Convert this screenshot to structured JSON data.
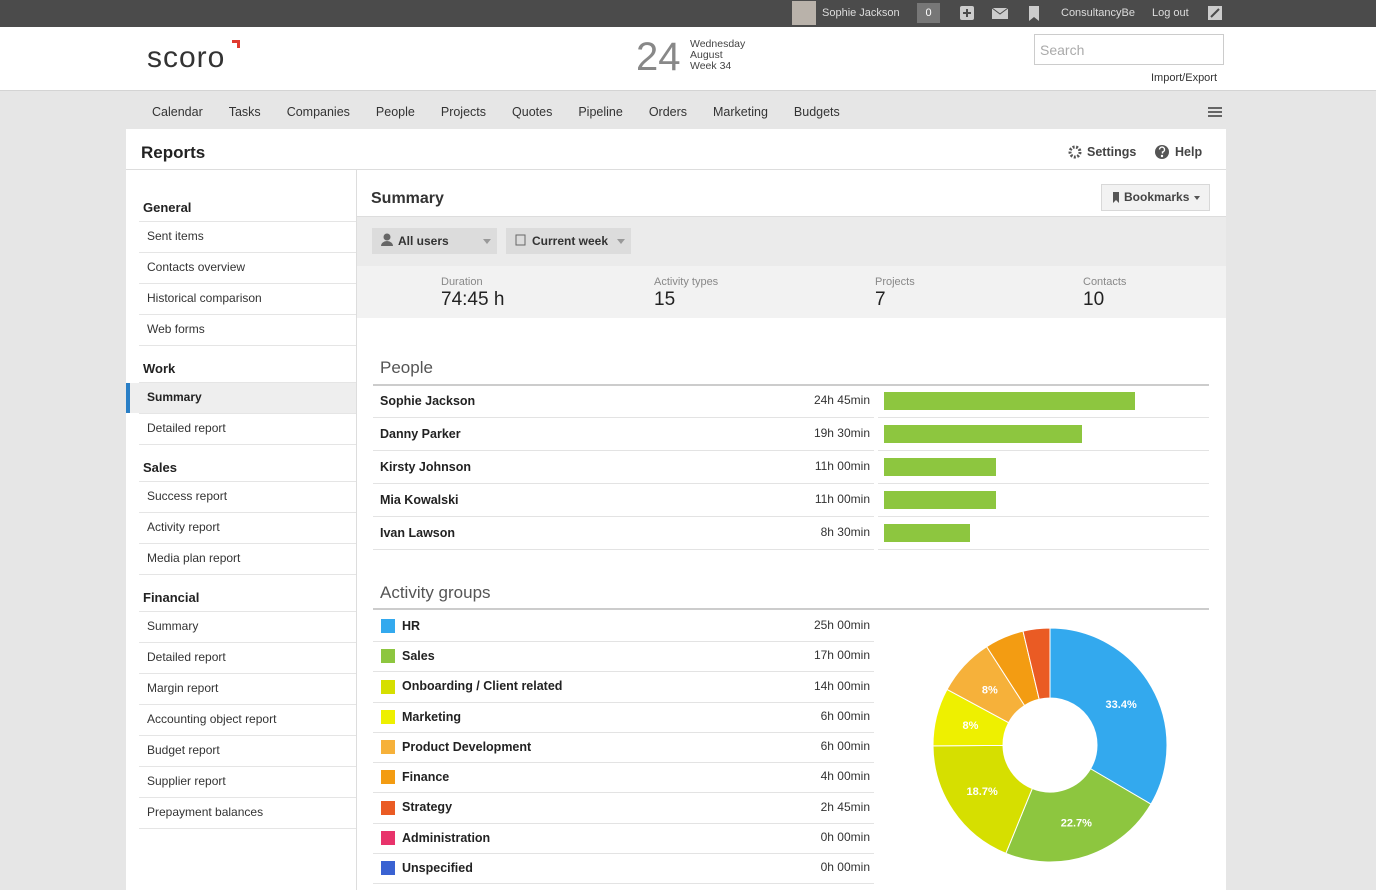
{
  "topbar": {
    "user": "Sophie Jackson",
    "notifications": "0",
    "company": "ConsultancyBe",
    "logout": "Log out"
  },
  "header": {
    "logo": "scoro",
    "day": "24",
    "weekday": "Wednesday",
    "month": "August",
    "week": "Week 34",
    "search": "Search",
    "import_export": "Import/Export"
  },
  "nav": [
    "Calendar",
    "Tasks",
    "Companies",
    "People",
    "Projects",
    "Quotes",
    "Pipeline",
    "Orders",
    "Marketing",
    "Budgets"
  ],
  "page": {
    "title": "Reports",
    "settings": "Settings",
    "help": "Help"
  },
  "sidebar": {
    "groups": [
      {
        "heading": "General",
        "items": [
          "Sent items",
          "Contacts overview",
          "Historical comparison",
          "Web forms"
        ]
      },
      {
        "heading": "Work",
        "items": [
          "Summary",
          "Detailed report"
        ]
      },
      {
        "heading": "Sales",
        "items": [
          "Success report",
          "Activity report",
          "Media plan report"
        ]
      },
      {
        "heading": "Financial",
        "items": [
          "Summary",
          "Detailed report",
          "Margin report",
          "Accounting object report",
          "Budget report",
          "Supplier report",
          "Prepayment balances"
        ]
      }
    ],
    "selected": [
      1,
      0
    ]
  },
  "summary": {
    "title": "Summary",
    "bookmarks": "Bookmarks",
    "filters": [
      "All users",
      "Current week"
    ],
    "stats": [
      {
        "label": "Duration",
        "value": "74:45 h"
      },
      {
        "label": "Activity types",
        "value": "15"
      },
      {
        "label": "Projects",
        "value": "7"
      },
      {
        "label": "Contacts",
        "value": "10"
      }
    ]
  },
  "chart_data": [
    {
      "type": "bar",
      "orientation": "horizontal",
      "title": "People",
      "categories": [
        "Sophie Jackson",
        "Danny Parker",
        "Kirsty Johnson",
        "Mia Kowalski",
        "Ivan Lawson"
      ],
      "values": [
        24.75,
        19.5,
        11,
        11,
        8.5
      ],
      "value_labels": [
        "24h 45min",
        "19h 30min",
        "11h 00min",
        "11h 00min",
        "8h 30min"
      ],
      "color": "#8dc63f",
      "xlim": [
        0,
        32
      ]
    },
    {
      "type": "pie",
      "title": "Activity groups",
      "donut": true,
      "categories": [
        "HR",
        "Sales",
        "Onboarding / Client related",
        "Marketing",
        "Product Development",
        "Finance",
        "Strategy",
        "Administration",
        "Unspecified"
      ],
      "colors": [
        "#33a9ee",
        "#8dc63f",
        "#d6df00",
        "#eef000",
        "#f6b13a",
        "#f39c12",
        "#ea5b24",
        "#e8336b",
        "#3a62d2"
      ],
      "values": [
        33.4,
        22.7,
        18.7,
        8,
        8,
        5.4,
        3.7,
        0,
        0
      ],
      "value_labels": [
        "33.4%",
        "22.7%",
        "18.7%",
        "8%",
        "8%",
        null,
        null,
        null,
        null
      ],
      "durations": [
        "25h 00min",
        "17h 00min",
        "14h 00min",
        "6h 00min",
        "6h 00min",
        "4h 00min",
        "2h 45min",
        "0h 00min",
        "0h 00min"
      ]
    }
  ]
}
